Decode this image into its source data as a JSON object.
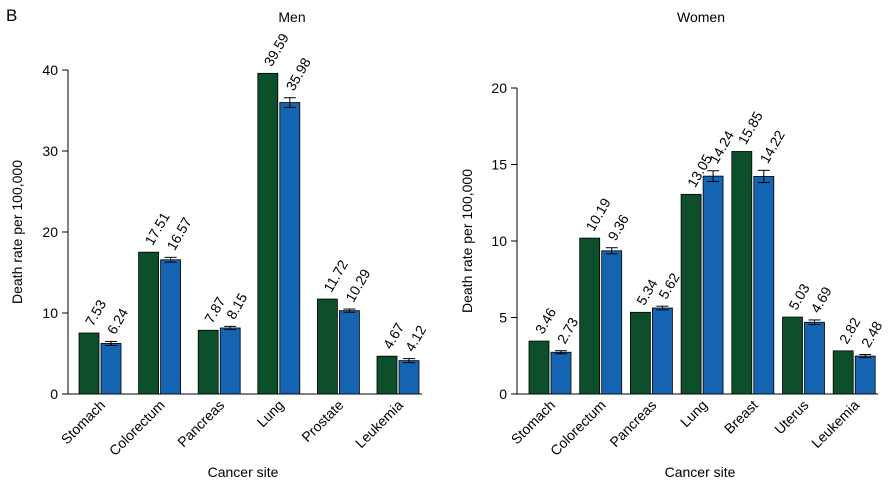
{
  "panel_label": "B",
  "colors": {
    "series_1": "#0c4f2a",
    "series_2": "#1464b2"
  },
  "chart_data": [
    {
      "type": "bar",
      "title": "Men",
      "xlabel": "Cancer site",
      "ylabel": "Death rate per 100,000",
      "ylim": [
        0,
        40
      ],
      "yticks": [
        "0",
        "10",
        "20",
        "30",
        "40"
      ],
      "categories": [
        "Stomach",
        "Colorectum",
        "Pancreas",
        "Lung",
        "Prostate",
        "Leukemia"
      ],
      "series": [
        {
          "values": [
            7.53,
            17.51,
            7.87,
            39.59,
            11.72,
            4.67
          ],
          "labels": [
            "7.53",
            "17.51",
            "7.87",
            "39.59",
            "11.72",
            "4.67"
          ]
        },
        {
          "values": [
            6.24,
            16.57,
            8.15,
            35.98,
            10.29,
            4.12
          ],
          "labels": [
            "6.24",
            "16.57",
            "8.15",
            "35.98",
            "10.29",
            "4.12"
          ],
          "errors": [
            0.25,
            0.3,
            0.2,
            0.6,
            0.2,
            0.25
          ]
        }
      ]
    },
    {
      "type": "bar",
      "title": "Women",
      "xlabel": "Cancer site",
      "ylabel": "Death rate per 100,000",
      "ylim": [
        0,
        20
      ],
      "yticks": [
        "0",
        "5",
        "10",
        "15",
        "20"
      ],
      "categories": [
        "Stomach",
        "Colorectum",
        "Pancreas",
        "Lung",
        "Breast",
        "Uterus",
        "Leukemia"
      ],
      "series": [
        {
          "values": [
            3.46,
            10.19,
            5.34,
            13.05,
            15.85,
            5.03,
            2.82
          ],
          "labels": [
            "3.46",
            "10.19",
            "5.34",
            "13.05",
            "15.85",
            "5.03",
            "2.82"
          ]
        },
        {
          "values": [
            2.73,
            9.36,
            5.62,
            14.24,
            14.22,
            4.69,
            2.48
          ],
          "labels": [
            "2.73",
            "9.36",
            "5.62",
            "14.24",
            "14.22",
            "4.69",
            "2.48"
          ],
          "errors": [
            0.1,
            0.2,
            0.12,
            0.35,
            0.4,
            0.15,
            0.1
          ]
        }
      ]
    }
  ]
}
